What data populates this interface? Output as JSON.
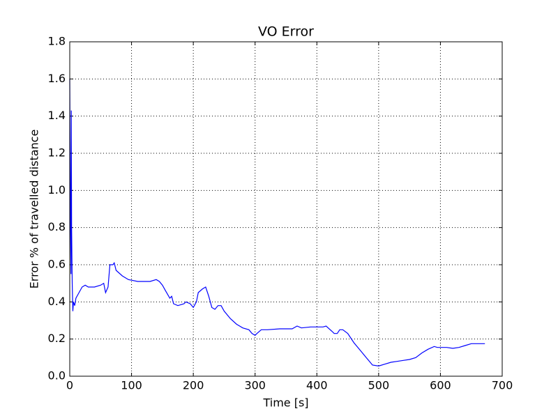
{
  "chart_data": {
    "type": "line",
    "title": "VO Error",
    "xlabel": "Time [s]",
    "ylabel": "Error % of travelled distance",
    "grid": true,
    "xlim": [
      0,
      700
    ],
    "xticks": [
      0,
      100,
      200,
      300,
      400,
      500,
      600,
      700
    ],
    "ylim": [
      0,
      1.8
    ],
    "yticks": [
      {
        "value": 0,
        "label": "0.0"
      },
      0.2,
      0.4,
      0.6,
      0.8,
      {
        "value": 1,
        "label": "1.0"
      },
      1.2,
      1.4,
      1.6,
      1.8
    ],
    "x": [
      0,
      1,
      2,
      2.5,
      3,
      4,
      5,
      6,
      8,
      10,
      15,
      20,
      25,
      30,
      40,
      50,
      55,
      58,
      62,
      65,
      70,
      72,
      75,
      85,
      95,
      110,
      130,
      140,
      145,
      150,
      155,
      162,
      165,
      168,
      175,
      185,
      188,
      195,
      200,
      205,
      208,
      215,
      220,
      225,
      230,
      235,
      240,
      245,
      250,
      260,
      270,
      275,
      280,
      290,
      295,
      300,
      303,
      310,
      320,
      340,
      360,
      368,
      375,
      390,
      410,
      415,
      425,
      428,
      433,
      437,
      442,
      450,
      460,
      470,
      480,
      485,
      490,
      500,
      510,
      520,
      530,
      540,
      550,
      560,
      570,
      580,
      590,
      595,
      610,
      620,
      630,
      640,
      650,
      672
    ],
    "series": [
      {
        "color": "#0000ff",
        "values": [
          1.6,
          0.9,
          0.55,
          1.43,
          0.8,
          0.5,
          0.35,
          0.4,
          0.38,
          0.42,
          0.45,
          0.48,
          0.49,
          0.48,
          0.48,
          0.49,
          0.5,
          0.45,
          0.48,
          0.6,
          0.6,
          0.61,
          0.57,
          0.54,
          0.52,
          0.51,
          0.51,
          0.52,
          0.51,
          0.49,
          0.46,
          0.42,
          0.43,
          0.39,
          0.38,
          0.39,
          0.4,
          0.39,
          0.37,
          0.4,
          0.45,
          0.47,
          0.48,
          0.43,
          0.37,
          0.36,
          0.38,
          0.38,
          0.35,
          0.31,
          0.28,
          0.27,
          0.26,
          0.25,
          0.23,
          0.22,
          0.23,
          0.25,
          0.25,
          0.255,
          0.255,
          0.27,
          0.26,
          0.265,
          0.265,
          0.27,
          0.24,
          0.23,
          0.23,
          0.25,
          0.25,
          0.23,
          0.18,
          0.14,
          0.1,
          0.08,
          0.06,
          0.055,
          0.065,
          0.075,
          0.08,
          0.085,
          0.09,
          0.1,
          0.125,
          0.145,
          0.16,
          0.155,
          0.155,
          0.15,
          0.155,
          0.165,
          0.175,
          0.175
        ]
      }
    ]
  }
}
